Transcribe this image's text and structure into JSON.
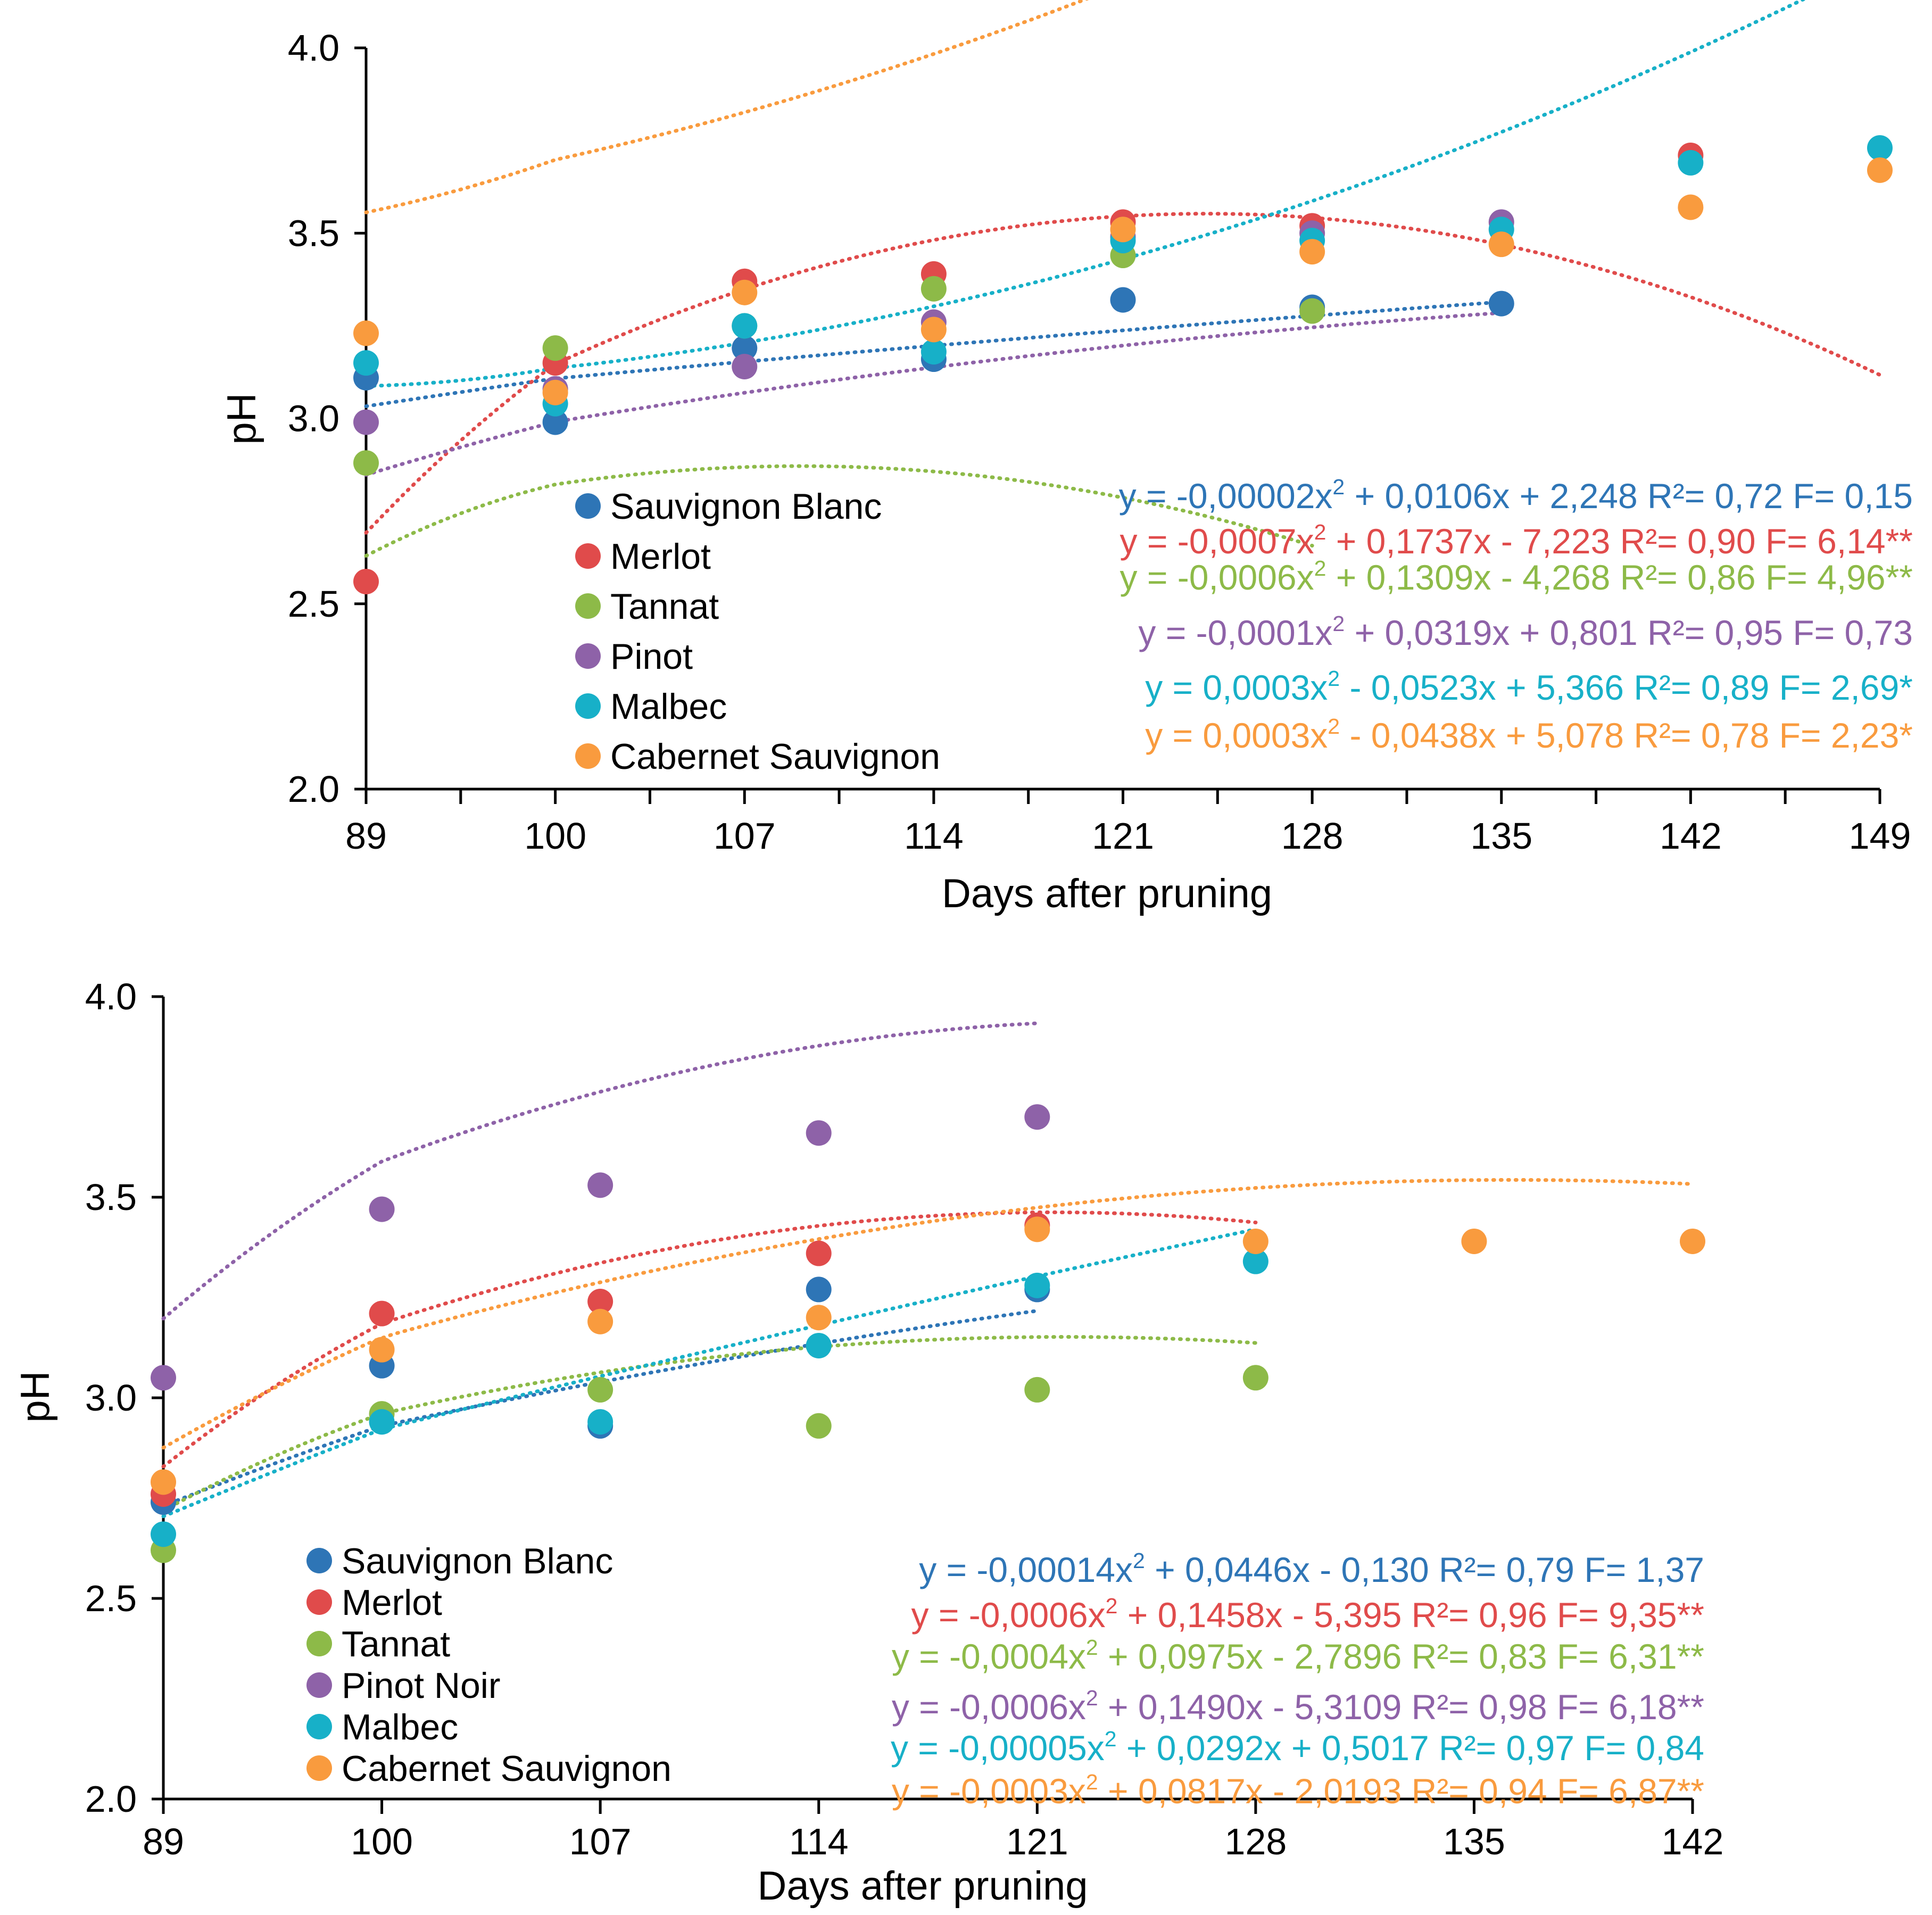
{
  "chart_data": [
    {
      "type": "scatter",
      "title": "",
      "xlabel": "Days after pruning",
      "ylabel": "pH",
      "xlim": [
        89,
        149
      ],
      "ylim": [
        2.0,
        4.0
      ],
      "x_ticks": [
        "89",
        "100",
        "107",
        "114",
        "121",
        "128",
        "135",
        "142",
        "149"
      ],
      "y_ticks": [
        "2.0",
        "2.5",
        "3.0",
        "3.5",
        "4.0"
      ],
      "legend_position": "bottom-left",
      "series": [
        {
          "name": "Sauvignon Blanc",
          "color": "#2E75B6",
          "points": [
            [
              0,
              3.11
            ],
            [
              1,
              2.99
            ],
            [
              2,
              3.19
            ],
            [
              3,
              3.16
            ],
            [
              4,
              3.32
            ],
            [
              5,
              3.3
            ],
            [
              6,
              3.31
            ]
          ],
          "fit": [
            -2e-05,
            0.0106,
            2.248
          ],
          "fit_range": [
            0,
            6
          ],
          "equation": {
            "main": "y = -0,00002x",
            "sup": "2",
            "rest": " + 0,0106x + 2,248 R²= 0,72 F= 0,15"
          }
        },
        {
          "name": "Merlot",
          "color": "#E04B4B",
          "points": [
            [
              0,
              2.56
            ],
            [
              1,
              3.15
            ],
            [
              2,
              3.37
            ],
            [
              3,
              3.39
            ],
            [
              4,
              3.53
            ],
            [
              5,
              3.52
            ],
            [
              7,
              3.71
            ]
          ],
          "fit": [
            -0.0007,
            0.1737,
            -7.223
          ],
          "fit_range": [
            0,
            8
          ],
          "equation": {
            "main": "y = -0,0007x",
            "sup": "2",
            "rest": " + 0,1737x - 7,223 R²= 0,90 F= 6,14**"
          }
        },
        {
          "name": "Tannat",
          "color": "#8DBA48",
          "points": [
            [
              0,
              2.88
            ],
            [
              1,
              3.19
            ],
            [
              2,
              3.25
            ],
            [
              3,
              3.35
            ],
            [
              4,
              3.44
            ],
            [
              5,
              3.29
            ]
          ],
          "fit": [
            -0.0006,
            0.1309,
            -4.268
          ],
          "fit_range": [
            0,
            5
          ],
          "equation": {
            "main": "y = -0,0006x",
            "sup": "2",
            "rest": " + 0,1309x - 4,268 R²= 0,86 F= 4,96**"
          }
        },
        {
          "name": "Pinot",
          "color": "#8E62A8",
          "points": [
            [
              0,
              2.99
            ],
            [
              1,
              3.08
            ],
            [
              2,
              3.14
            ],
            [
              3,
              3.26
            ],
            [
              4,
              3.49
            ],
            [
              5,
              3.5
            ],
            [
              6,
              3.53
            ]
          ],
          "fit": [
            -0.0001,
            0.0319,
            0.801
          ],
          "fit_range": [
            0,
            6
          ],
          "equation": {
            "main": "y = -0,0001x",
            "sup": "2",
            "rest": " + 0,0319x + 0,801 R²= 0,95 F= 0,73"
          }
        },
        {
          "name": "Malbec",
          "color": "#17B0C8",
          "points": [
            [
              0,
              3.15
            ],
            [
              1,
              3.04
            ],
            [
              2,
              3.25
            ],
            [
              3,
              3.18
            ],
            [
              4,
              3.48
            ],
            [
              5,
              3.48
            ],
            [
              6,
              3.51
            ],
            [
              7,
              3.69
            ],
            [
              8,
              3.73
            ]
          ],
          "fit": [
            0.0003,
            -0.0523,
            5.366
          ],
          "fit_range": [
            0,
            8
          ],
          "equation": {
            "main": "y = 0,0003x",
            "sup": "2",
            "rest": " - 0,0523x + 5,366 R²= 0,89 F= 2,69*"
          }
        },
        {
          "name": "Cabernet Sauvignon",
          "color": "#F99B3E",
          "points": [
            [
              0,
              3.23
            ],
            [
              1,
              3.07
            ],
            [
              2,
              3.34
            ],
            [
              3,
              3.24
            ],
            [
              4,
              3.51
            ],
            [
              5,
              3.45
            ],
            [
              6,
              3.47
            ],
            [
              7,
              3.57
            ],
            [
              8,
              3.67
            ]
          ],
          "fit": [
            0.0003,
            -0.0438,
            5.078
          ],
          "fit_range": [
            0,
            8
          ],
          "equation": {
            "main": "y = 0,0003x",
            "sup": "2",
            "rest": " - 0,0438x + 5,078 R²= 0,78 F= 2,23*"
          }
        }
      ]
    },
    {
      "type": "scatter",
      "title": "",
      "xlabel": "Days after pruning",
      "ylabel": "pH",
      "xlim": [
        89,
        142
      ],
      "ylim": [
        2.0,
        4.0
      ],
      "x_ticks": [
        "89",
        "100",
        "107",
        "114",
        "121",
        "128",
        "135",
        "142"
      ],
      "y_ticks": [
        "2.0",
        "2.5",
        "3.0",
        "3.5",
        "4.0"
      ],
      "legend_position": "bottom-left",
      "series": [
        {
          "name": "Sauvignon Blanc",
          "color": "#2E75B6",
          "points": [
            [
              0,
              2.74
            ],
            [
              1,
              3.08
            ],
            [
              2,
              2.93
            ],
            [
              3,
              3.27
            ],
            [
              4,
              3.27
            ]
          ],
          "fit": [
            -0.00014,
            0.0446,
            -0.13
          ],
          "fit_range": [
            0,
            4
          ],
          "equation": {
            "main": "y = -0,00014x",
            "sup": "2",
            "rest": " + 0,0446x - 0,130 R²= 0,79 F= 1,37"
          }
        },
        {
          "name": "Merlot",
          "color": "#E04B4B",
          "points": [
            [
              0,
              2.76
            ],
            [
              1,
              3.21
            ],
            [
              2,
              3.24
            ],
            [
              3,
              3.36
            ],
            [
              4,
              3.43
            ]
          ],
          "fit": [
            -0.0006,
            0.1458,
            -5.395
          ],
          "fit_range": [
            0,
            5
          ],
          "equation": {
            "main": "y = -0,0006x",
            "sup": "2",
            "rest": " + 0,1458x - 5,395 R²= 0,96 F= 9,35**"
          }
        },
        {
          "name": "Tannat",
          "color": "#8DBA48",
          "points": [
            [
              0,
              2.62
            ],
            [
              1,
              2.96
            ],
            [
              2,
              3.02
            ],
            [
              3,
              2.93
            ],
            [
              4,
              3.02
            ],
            [
              5,
              3.05
            ]
          ],
          "fit": [
            -0.0004,
            0.0975,
            -2.7896
          ],
          "fit_range": [
            0,
            5
          ],
          "equation": {
            "main": "y = -0,0004x",
            "sup": "2",
            "rest": " + 0,0975x - 2,7896 R²= 0,83 F= 6,31**"
          }
        },
        {
          "name": "Pinot Noir",
          "color": "#8E62A8",
          "points": [
            [
              0,
              3.05
            ],
            [
              1,
              3.47
            ],
            [
              2,
              3.53
            ],
            [
              3,
              3.66
            ],
            [
              4,
              3.7
            ]
          ],
          "fit": [
            -0.0006,
            0.149,
            -5.3109
          ],
          "fit_range": [
            0,
            4
          ],
          "equation": {
            "main": "y = -0,0006x",
            "sup": "2",
            "rest": " + 0,1490x - 5,3109 R²= 0,98 F= 6,18**"
          }
        },
        {
          "name": "Malbec",
          "color": "#17B0C8",
          "points": [
            [
              0,
              2.66
            ],
            [
              1,
              2.94
            ],
            [
              2,
              2.94
            ],
            [
              3,
              3.13
            ],
            [
              4,
              3.28
            ],
            [
              5,
              3.34
            ]
          ],
          "fit": [
            -5e-05,
            0.0292,
            0.5017
          ],
          "fit_range": [
            0,
            5
          ],
          "equation": {
            "main": "y = -0,00005x",
            "sup": "2",
            "rest": " + 0,0292x + 0,5017 R²= 0,97 F= 0,84"
          }
        },
        {
          "name": "Cabernet Sauvignon",
          "color": "#F99B3E",
          "points": [
            [
              0,
              2.79
            ],
            [
              1,
              3.12
            ],
            [
              2,
              3.19
            ],
            [
              3,
              3.2
            ],
            [
              4,
              3.42
            ],
            [
              5,
              3.39
            ],
            [
              6,
              3.39
            ],
            [
              7,
              3.39
            ]
          ],
          "fit": [
            -0.0003,
            0.0817,
            -2.0193
          ],
          "fit_range": [
            0,
            7
          ],
          "equation": {
            "main": "y = -0,0003x",
            "sup": "2",
            "rest": " + 0,0817x - 2,0193 R²= 0,94 F= 6,87**"
          }
        }
      ]
    }
  ]
}
